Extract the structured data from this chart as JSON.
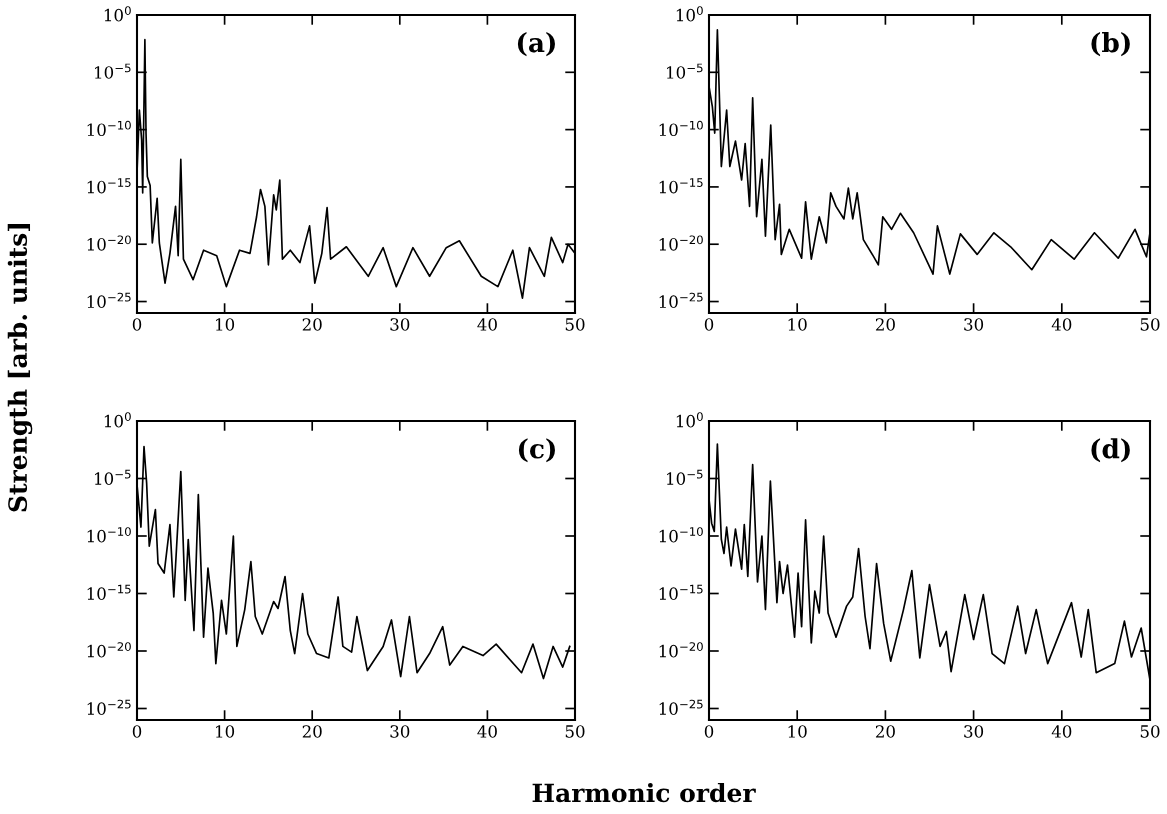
{
  "chart_data": [
    {
      "type": "line",
      "xlabel": "Harmonic order",
      "ylabel": "Strength [arb. units]",
      "annotations": [
        "(a)"
      ],
      "log": "y",
      "xlim": [
        0,
        50
      ],
      "ylim": [
        1e-26,
        1
      ],
      "xticks": [
        0,
        10,
        20,
        30,
        40,
        50
      ],
      "yticks": [
        {
          "value": 1,
          "label": "10$^{0}$"
        },
        {
          "value": 1e-05,
          "label": "10$^{−5}$"
        },
        {
          "value": 1e-10,
          "label": "10$^{−10}$"
        },
        {
          "value": 1e-15,
          "label": "10$^{−15}$"
        },
        {
          "value": 1e-20,
          "label": "10$^{−20}$"
        },
        {
          "value": 1e-25,
          "label": "10$^{−25}$"
        }
      ],
      "grid": false,
      "legend": false,
      "x": [
        0,
        0.27,
        0.53,
        0.65,
        0.9,
        1.03,
        1.18,
        1.5,
        1.75,
        2.3,
        2.55,
        3.2,
        3.76,
        4.4,
        4.7,
        5.0,
        5.3,
        6.4,
        7.6,
        9.1,
        10.2,
        11.7,
        12.9,
        13.65,
        14.1,
        14.6,
        15.0,
        15.6,
        15.9,
        16.3,
        16.6,
        17.5,
        18.6,
        19.7,
        20.3,
        21.1,
        21.7,
        22.1,
        23.9,
        26.4,
        28.1,
        29.6,
        31.5,
        33.4,
        35.3,
        36.8,
        39.3,
        41.2,
        42.9,
        44.0,
        44.8,
        46.5,
        47.3,
        48.6,
        49.2,
        50
      ],
      "series": [
        {
          "color": "#000000",
          "values": [
            1.6e-14,
            5e-09,
            1.3e-11,
            3e-16,
            0.007,
            5e-11,
            8e-15,
            1.3e-15,
            1.3e-20,
            1e-16,
            1.3e-20,
            4e-24,
            1.6e-21,
            2e-17,
            1e-21,
            2.5e-13,
            5e-22,
            8e-24,
            3e-21,
            1e-21,
            2e-24,
            3e-21,
            1.6e-21,
            2.5e-18,
            6e-16,
            2e-17,
            1.6e-22,
            2e-16,
            1e-17,
            4e-15,
            5e-22,
            3e-21,
            2.5e-22,
            4e-19,
            4e-24,
            1.6e-21,
            1.6e-17,
            5e-22,
            6e-21,
            1.6e-23,
            5e-21,
            2e-24,
            5e-21,
            1.6e-23,
            5e-21,
            2e-20,
            1.6e-23,
            2e-24,
            3e-21,
            2e-25,
            5e-21,
            1.6e-23,
            4e-20,
            2.5e-22,
            1e-20,
            1.6e-21
          ]
        }
      ]
    },
    {
      "type": "line",
      "annotations": [
        "(b)"
      ],
      "log": "y",
      "xlim": [
        0,
        50
      ],
      "ylim": [
        1e-26,
        1
      ],
      "xticks": [
        0,
        10,
        20,
        30,
        40,
        50
      ],
      "yticks": [
        {
          "value": 1,
          "label": "10$^{0}$"
        },
        {
          "value": 1e-05,
          "label": "10$^{−5}$"
        },
        {
          "value": 1e-10,
          "label": "10$^{−10}$"
        },
        {
          "value": 1e-15,
          "label": "10$^{−15}$"
        },
        {
          "value": 1e-20,
          "label": "10$^{−20}$"
        },
        {
          "value": 1e-25,
          "label": "10$^{−25}$"
        }
      ],
      "grid": false,
      "legend": false,
      "x": [
        0,
        0.38,
        0.65,
        0.95,
        1.2,
        1.4,
        2.0,
        2.36,
        3.0,
        3.7,
        4.1,
        4.6,
        4.95,
        5.4,
        6.0,
        6.4,
        7.0,
        7.5,
        8.0,
        8.2,
        9.1,
        10.5,
        10.95,
        11.6,
        12.5,
        13.3,
        13.8,
        14.4,
        15.3,
        15.8,
        16.3,
        16.8,
        17.5,
        18.6,
        19.2,
        19.7,
        20.7,
        21.7,
        23.2,
        25.4,
        25.9,
        27.3,
        28.5,
        30.4,
        32.3,
        34.2,
        36.6,
        38.8,
        41.4,
        43.7,
        46.4,
        48.3,
        49.6,
        50
      ],
      "series": [
        {
          "color": "#000000",
          "values": [
            6e-07,
            1e-08,
            5e-11,
            0.05,
            2e-08,
            6e-14,
            5e-09,
            6e-14,
            1e-11,
            4e-15,
            6e-12,
            2e-17,
            6e-08,
            2.5e-18,
            2.5e-13,
            5e-20,
            2.5e-10,
            2.5e-20,
            3e-17,
            1.3e-21,
            2e-19,
            6e-22,
            5e-17,
            5e-22,
            2.5e-18,
            1.3e-20,
            3e-16,
            2e-17,
            1.6e-18,
            8e-16,
            1.6e-18,
            3e-16,
            2.5e-20,
            1e-21,
            1.6e-22,
            2.5e-18,
            2e-19,
            5e-18,
            1e-19,
            2.5e-23,
            4e-19,
            2.5e-23,
            8e-20,
            1.3e-21,
            1e-19,
            6e-21,
            6e-23,
            2.5e-20,
            5e-22,
            1e-19,
            6e-22,
            2e-19,
            8e-22,
            1e-19
          ]
        }
      ]
    },
    {
      "type": "line",
      "annotations": [
        "(c)"
      ],
      "log": "y",
      "xlim": [
        0,
        50
      ],
      "ylim": [
        1e-26,
        1
      ],
      "xticks": [
        0,
        10,
        20,
        30,
        40,
        50
      ],
      "yticks": [
        {
          "value": 1,
          "label": "10$^{0}$"
        },
        {
          "value": 1e-05,
          "label": "10$^{−5}$"
        },
        {
          "value": 1e-10,
          "label": "10$^{−10}$"
        },
        {
          "value": 1e-15,
          "label": "10$^{−15}$"
        },
        {
          "value": 1e-20,
          "label": "10$^{−20}$"
        },
        {
          "value": 1e-25,
          "label": "10$^{−25}$"
        }
      ],
      "grid": false,
      "legend": false,
      "x": [
        0,
        0.45,
        0.8,
        1.1,
        1.4,
        2.1,
        2.4,
        3.1,
        3.76,
        4.2,
        5.0,
        5.5,
        5.85,
        6.5,
        7.0,
        7.6,
        8.1,
        8.7,
        9.0,
        9.65,
        10.2,
        11.0,
        11.4,
        12.3,
        13.0,
        13.5,
        14.3,
        15.6,
        16.1,
        16.9,
        17.5,
        18.0,
        18.9,
        19.5,
        20.5,
        21.9,
        22.96,
        23.5,
        24.5,
        25.1,
        26.3,
        28.1,
        29.05,
        30.1,
        31.1,
        31.97,
        33.4,
        34.9,
        35.7,
        37.2,
        39.5,
        41.0,
        43.9,
        45.2,
        46.4,
        47.5,
        48.6,
        49.4
      ],
      "series": [
        {
          "color": "#000000",
          "values": [
            3e-06,
            6e-10,
            0.006,
            4e-06,
            1.3e-11,
            2e-08,
            4e-13,
            6e-14,
            1e-09,
            5e-16,
            4e-05,
            2.5e-16,
            5e-11,
            6e-19,
            4e-07,
            1.6e-19,
            1.6e-13,
            2e-17,
            8e-22,
            2.5e-16,
            3e-19,
            1e-10,
            2.5e-20,
            4e-17,
            6e-13,
            1e-17,
            3e-19,
            2e-16,
            5e-17,
            3e-14,
            6e-19,
            6e-21,
            1e-15,
            3e-19,
            6e-21,
            2.5e-21,
            5e-16,
            2.5e-20,
            8e-21,
            1e-17,
            2e-22,
            2.5e-20,
            5e-18,
            6e-23,
            1e-17,
            1.3e-22,
            6e-21,
            1.3e-18,
            6e-22,
            2.5e-20,
            4e-21,
            4e-20,
            1.3e-22,
            4e-20,
            4e-23,
            2.5e-20,
            4e-22,
            2.5e-20
          ]
        }
      ]
    },
    {
      "type": "line",
      "annotations": [
        "(d)"
      ],
      "log": "y",
      "xlim": [
        0,
        50
      ],
      "ylim": [
        1e-26,
        1
      ],
      "xticks": [
        0,
        10,
        20,
        30,
        40,
        50
      ],
      "yticks": [
        {
          "value": 1,
          "label": "10$^{0}$"
        },
        {
          "value": 1e-05,
          "label": "10$^{−5}$"
        },
        {
          "value": 1e-10,
          "label": "10$^{−10}$"
        },
        {
          "value": 1e-15,
          "label": "10$^{−15}$"
        },
        {
          "value": 1e-20,
          "label": "10$^{−20}$"
        },
        {
          "value": 1e-25,
          "label": "10$^{−25}$"
        }
      ],
      "grid": false,
      "legend": false,
      "x": [
        0,
        0.3,
        0.6,
        0.95,
        1.4,
        1.7,
        2.0,
        2.5,
        3.0,
        3.7,
        4.0,
        4.4,
        4.95,
        5.5,
        6.0,
        6.4,
        6.96,
        7.7,
        8.0,
        8.4,
        8.9,
        9.7,
        10.1,
        10.5,
        10.95,
        11.6,
        12.0,
        12.5,
        13.0,
        13.5,
        14.4,
        15.6,
        16.3,
        16.96,
        17.7,
        18.25,
        19.0,
        19.8,
        20.6,
        22.05,
        23.0,
        23.9,
        25.0,
        26.2,
        26.9,
        27.45,
        29.0,
        30.0,
        31.1,
        32.1,
        33.5,
        35.0,
        35.9,
        37.1,
        38.4,
        41.1,
        42.2,
        43.0,
        43.9,
        46.0,
        47.1,
        47.9,
        49.0,
        50.0
      ],
      "series": [
        {
          "color": "#000000",
          "values": [
            1.6e-07,
            1.3e-09,
            2.5e-10,
            0.01,
            5e-11,
            3e-12,
            6e-10,
            2.5e-13,
            4e-10,
            1.3e-13,
            1e-09,
            3e-14,
            0.00016,
            1e-14,
            1e-10,
            4e-17,
            6e-06,
            1.6e-16,
            6e-13,
            1e-15,
            3e-13,
            1.6e-19,
            6e-14,
            1.3e-18,
            2.5e-09,
            5e-20,
            1.6e-15,
            2e-17,
            1e-10,
            2e-17,
            1.6e-19,
            8e-17,
            5e-16,
            8e-12,
            1e-17,
            1.6e-20,
            4e-13,
            2.5e-18,
            1.3e-21,
            4e-17,
            1e-13,
            2.5e-21,
            6e-15,
            2.5e-20,
            5e-19,
            1.6e-22,
            8e-16,
            1e-19,
            8e-16,
            6e-21,
            8e-22,
            8e-17,
            6e-21,
            4e-17,
            8e-22,
            1.6e-16,
            3e-21,
            4e-17,
            1.3e-22,
            8e-22,
            4e-18,
            3e-21,
            1e-18,
            3e-23
          ]
        }
      ]
    }
  ]
}
